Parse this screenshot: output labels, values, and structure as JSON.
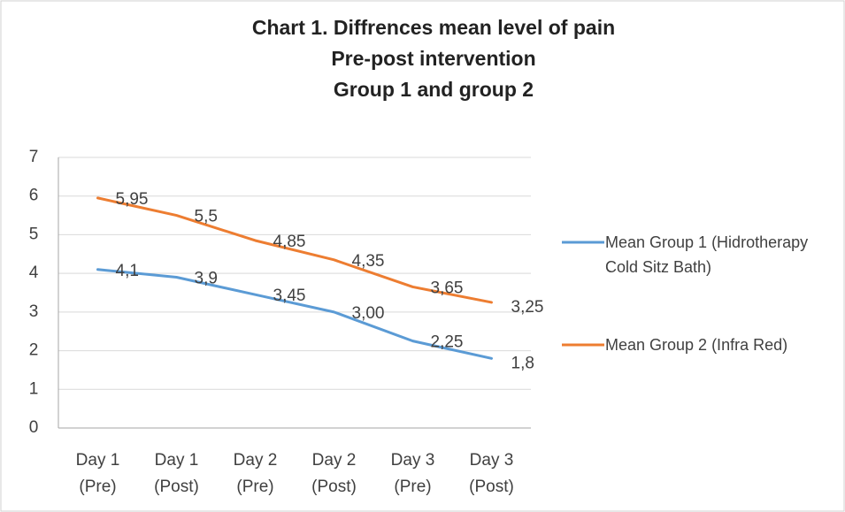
{
  "chart_data": {
    "type": "line",
    "title": [
      "Chart 1. Diffrences mean level of pain",
      "Pre-post intervention",
      "Group 1 and group 2"
    ],
    "categories": [
      [
        "Day 1",
        "(Pre)"
      ],
      [
        "Day 1",
        "(Post)"
      ],
      [
        "Day 2",
        "(Pre)"
      ],
      [
        "Day 2",
        "(Post)"
      ],
      [
        "Day 3",
        "(Pre)"
      ],
      [
        "Day 3",
        "(Post)"
      ]
    ],
    "series": [
      {
        "name": "Mean Group 1 (Hidrotherapy Cold Sitz Bath)",
        "color": "#5b9bd5",
        "values": [
          4.1,
          3.9,
          3.45,
          3.0,
          2.25,
          1.8
        ],
        "value_labels": [
          "4,1",
          "3,9",
          "3,45",
          "3,00",
          "2,25",
          "1,8"
        ]
      },
      {
        "name": "Mean Group 2 (Infra Red)",
        "color": "#ed7d31",
        "values": [
          5.95,
          5.5,
          4.85,
          4.35,
          3.65,
          3.25
        ],
        "value_labels": [
          "5,95",
          "5,5",
          "4,85",
          "4,35",
          "3,65",
          "3,25"
        ]
      }
    ],
    "ylim": [
      0,
      7
    ],
    "yticks": [
      0,
      1,
      2,
      3,
      4,
      5,
      6,
      7
    ],
    "grid": true,
    "legend": "right"
  }
}
